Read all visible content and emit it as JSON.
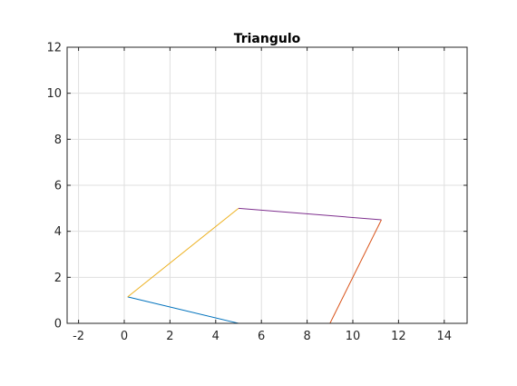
{
  "chart_data": {
    "type": "line",
    "title": "Triangulo",
    "xlabel": "",
    "ylabel": "",
    "xlim": [
      -2.5,
      15
    ],
    "ylim": [
      0,
      12
    ],
    "xticks": [
      -2,
      0,
      2,
      4,
      6,
      8,
      10,
      12,
      14
    ],
    "yticks": [
      0,
      2,
      4,
      6,
      8,
      10,
      12
    ],
    "xtick_labels": [
      "-2",
      "0",
      "2",
      "4",
      "6",
      "8",
      "10",
      "12",
      "14"
    ],
    "ytick_labels": [
      "0",
      "2",
      "4",
      "6",
      "8",
      "10",
      "12"
    ],
    "grid": true,
    "series": [
      {
        "color": "#0072BD",
        "x": [
          0.15,
          5.0
        ],
        "y": [
          1.15,
          0.0
        ]
      },
      {
        "color": "#EDB120",
        "x": [
          0.15,
          5.0
        ],
        "y": [
          1.15,
          5.0
        ]
      },
      {
        "color": "#7E2F8E",
        "x": [
          5.0,
          11.25
        ],
        "y": [
          5.0,
          4.5
        ]
      },
      {
        "color": "#D95319",
        "x": [
          9.0,
          11.25
        ],
        "y": [
          0.0,
          4.5
        ]
      }
    ]
  }
}
